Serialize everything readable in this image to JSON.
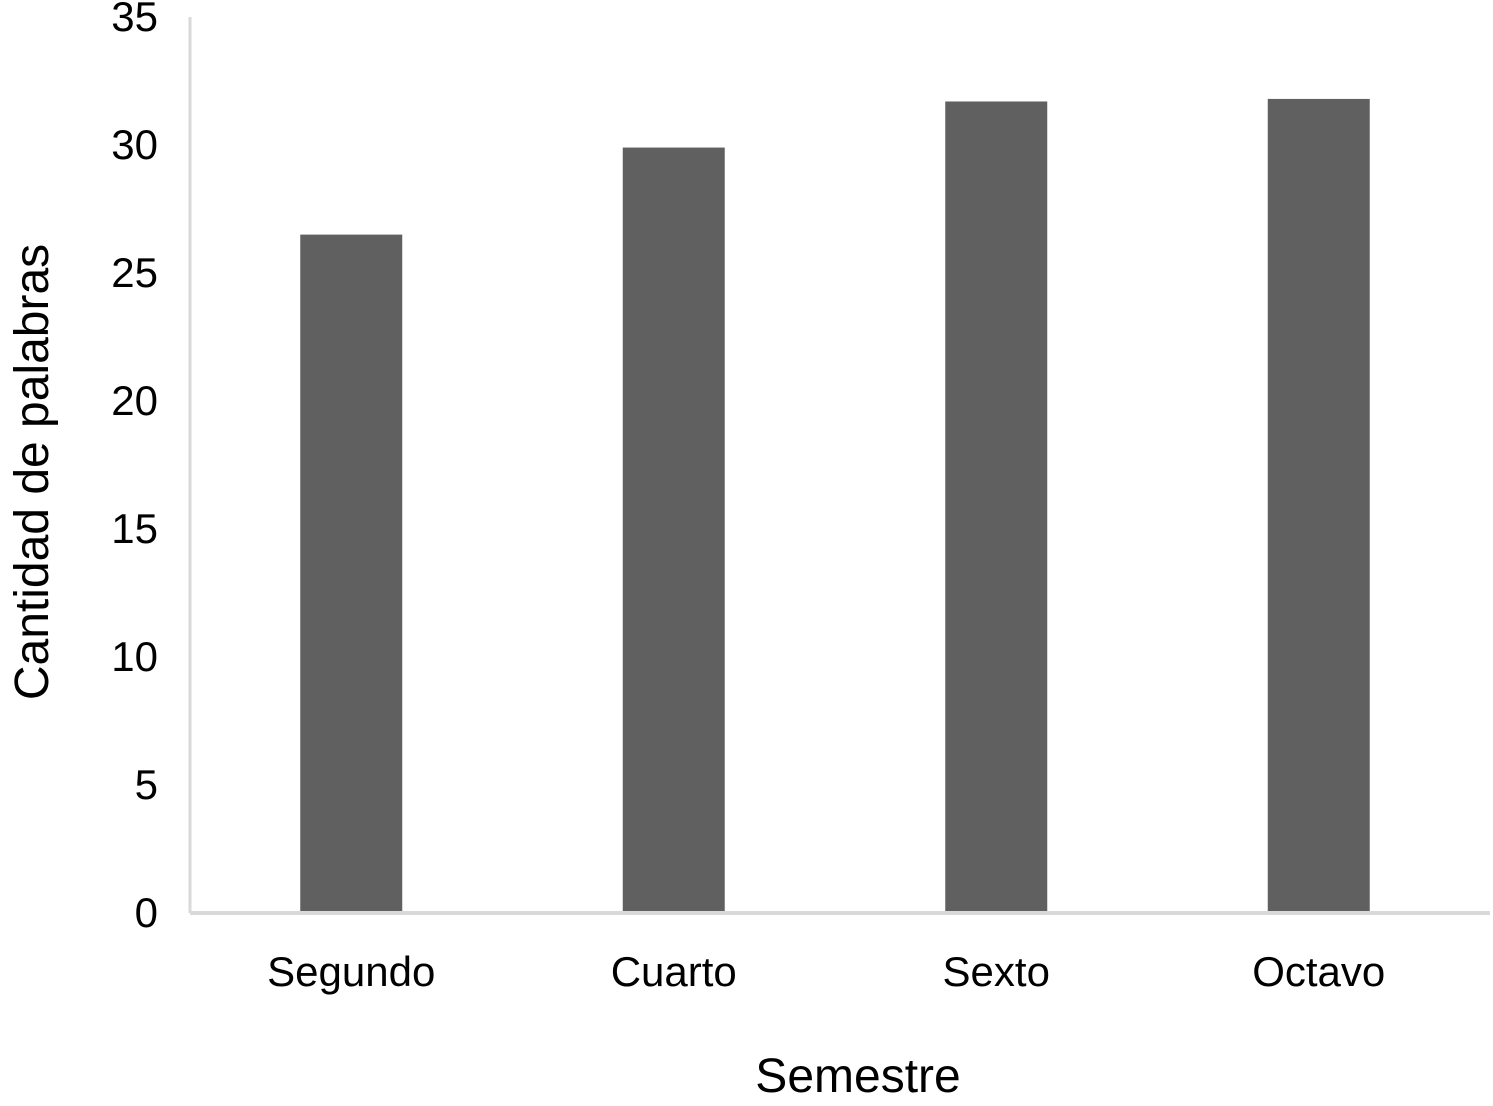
{
  "chart_data": {
    "type": "bar",
    "title": "",
    "xlabel": "Semestre",
    "ylabel": "Cantidad de palabras",
    "categories": [
      "Segundo",
      "Cuarto",
      "Sexto",
      "Octavo"
    ],
    "values": [
      26.5,
      29.9,
      31.7,
      31.8
    ],
    "ylim": [
      0,
      35
    ],
    "yticks": [
      0,
      5,
      10,
      15,
      20,
      25,
      30,
      35
    ],
    "grid": false,
    "legend": "none",
    "colors": {
      "bar": "#606060",
      "axis": "#d9d9d9",
      "text": "#000000"
    }
  }
}
